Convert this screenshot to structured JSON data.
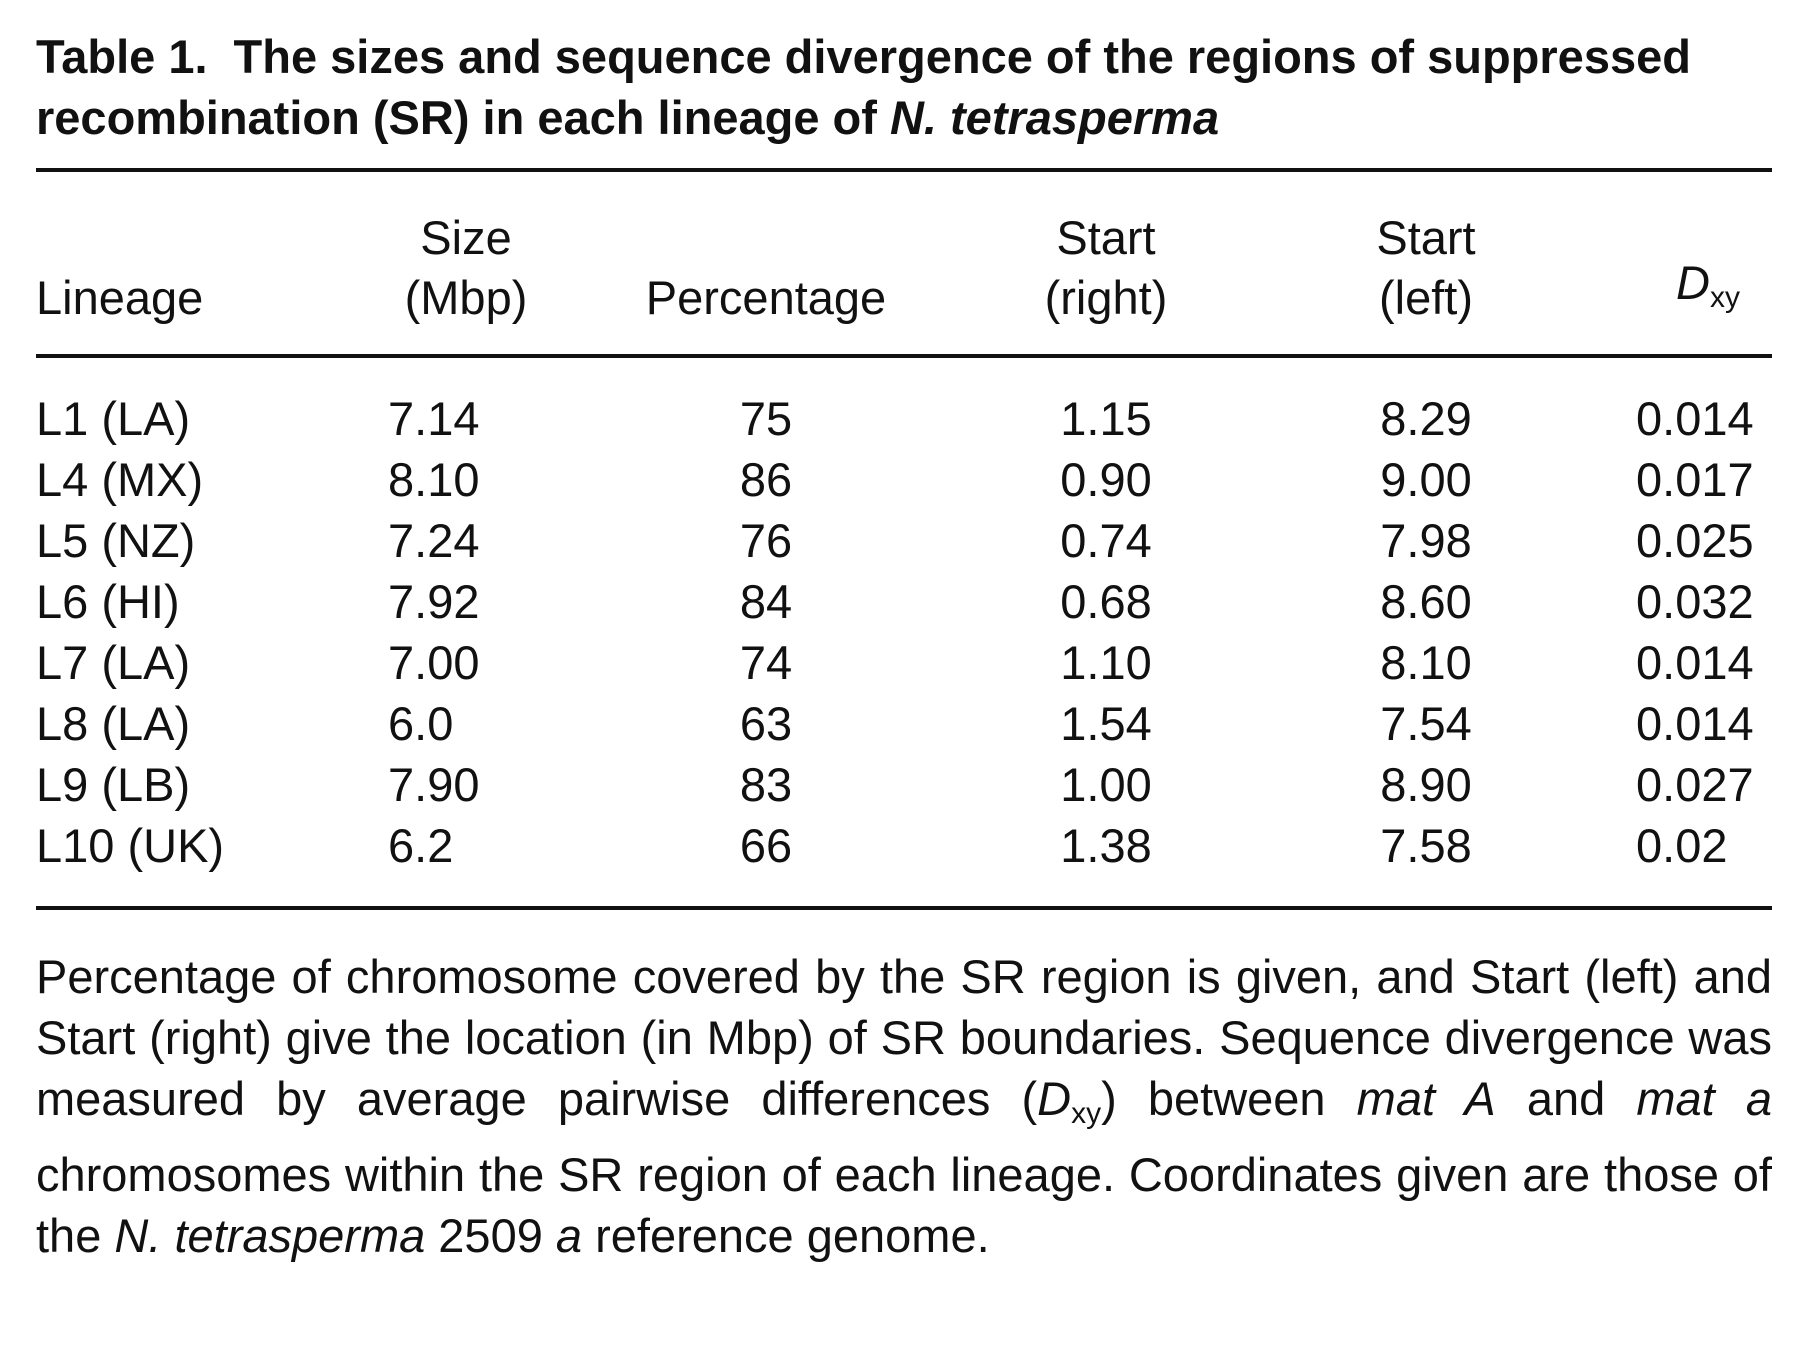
{
  "caption": {
    "label": "Table 1.",
    "text_before_species": "The sizes and sequence divergence of the regions of suppressed recombination (SR) in each lineage of ",
    "species": "N. tetrasperma"
  },
  "table": {
    "headers": {
      "lineage": "Lineage",
      "size_line1": "Size",
      "size_line2": "(Mbp)",
      "percentage": "Percentage",
      "start_right_line1": "Start",
      "start_right_line2": "(right)",
      "start_left_line1": "Start",
      "start_left_line2": "(left)",
      "dxy_main": "D",
      "dxy_sub": "xy"
    },
    "rows": [
      {
        "lineage": "L1 (LA)",
        "size": "7.14",
        "percentage": "75",
        "start_right": "1.15",
        "start_left": "8.29",
        "dxy": "0.014"
      },
      {
        "lineage": "L4 (MX)",
        "size": "8.10",
        "percentage": "86",
        "start_right": "0.90",
        "start_left": "9.00",
        "dxy": "0.017"
      },
      {
        "lineage": "L5 (NZ)",
        "size": "7.24",
        "percentage": "76",
        "start_right": "0.74",
        "start_left": "7.98",
        "dxy": "0.025"
      },
      {
        "lineage": "L6 (HI)",
        "size": "7.92",
        "percentage": "84",
        "start_right": "0.68",
        "start_left": "8.60",
        "dxy": "0.032"
      },
      {
        "lineage": "L7 (LA)",
        "size": "7.00",
        "percentage": "74",
        "start_right": "1.10",
        "start_left": "8.10",
        "dxy": "0.014"
      },
      {
        "lineage": "L8 (LA)",
        "size": "6.0",
        "percentage": "63",
        "start_right": "1.54",
        "start_left": "7.54",
        "dxy": "0.014"
      },
      {
        "lineage": "L9 (LB)",
        "size": "7.90",
        "percentage": "83",
        "start_right": "1.00",
        "start_left": "8.90",
        "dxy": "0.027"
      },
      {
        "lineage": "L10 (UK)",
        "size": "6.2",
        "percentage": "66",
        "start_right": "1.38",
        "start_left": "7.58",
        "dxy": "0.02"
      }
    ]
  },
  "footnote": {
    "part1": "Percentage of chromosome covered by the SR region is given, and Start (left) and Start (right) give the location (in Mbp) of SR boundaries. Sequence divergence was measured by average pairwise differences (",
    "dxy_main": "D",
    "dxy_sub": "xy",
    "part2": ") between ",
    "mat_A": "mat A",
    "part3": " and ",
    "mat_a": "mat a",
    "part4": " chromosomes within the SR region of each lineage. Coordinates given are those of the ",
    "species": "N. tetrasperma",
    "part5": " 2509 ",
    "strain_a": "a",
    "part6": " reference genome."
  }
}
